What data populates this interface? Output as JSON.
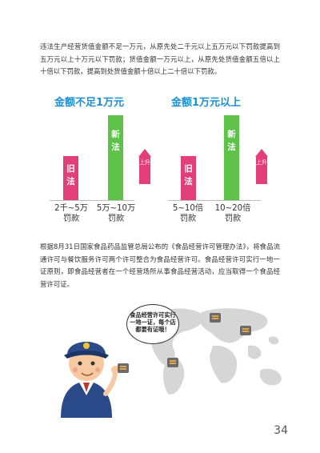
{
  "paragraph1": "违法生产经营货值金额不足一万元，从原先处二千元以上五万元以下罚款提高到五万元以上十万元以下罚款；货值金额一万元以上，从原先处货值金额五倍以上十倍以下罚款，提高到处货值金额十倍以上二十倍以下罚款。",
  "chart_left": {
    "title": "金额不足1万元",
    "old_bar": [
      "旧",
      "法"
    ],
    "new_bar": [
      "新",
      "法"
    ],
    "arrow": "上升",
    "old_label": [
      "2千~5万",
      "罚款"
    ],
    "new_label": [
      "5万~10万",
      "罚款"
    ]
  },
  "chart_right": {
    "title": "金额1万元以上",
    "old_bar": [
      "旧",
      "法"
    ],
    "new_bar": [
      "新",
      "法"
    ],
    "arrow": "上升",
    "old_label": [
      "5~10倍",
      "罚款"
    ],
    "new_label": [
      "10~20倍",
      "罚款"
    ]
  },
  "paragraph2": "根据8月31日国家食品药品监管总局公布的《食品经营许可管理办法》，将食品流通许可与餐饮服务许可两个许可整合为食品经营许可。食品经营许可实行一地一证原则，即食品经营者在一个经营场所从事食品经营活动，应当取得一个食品经营许可证。",
  "speech_bubble": [
    "食品经营许可实行",
    "一地一证，每个店",
    "都要有证哦！"
  ],
  "page_number": "34",
  "colors": {
    "title_blue": "#1a8fd6",
    "old_bar": "#e23e77",
    "new_bar": "#5ec248",
    "arrow": "#e23e77"
  }
}
